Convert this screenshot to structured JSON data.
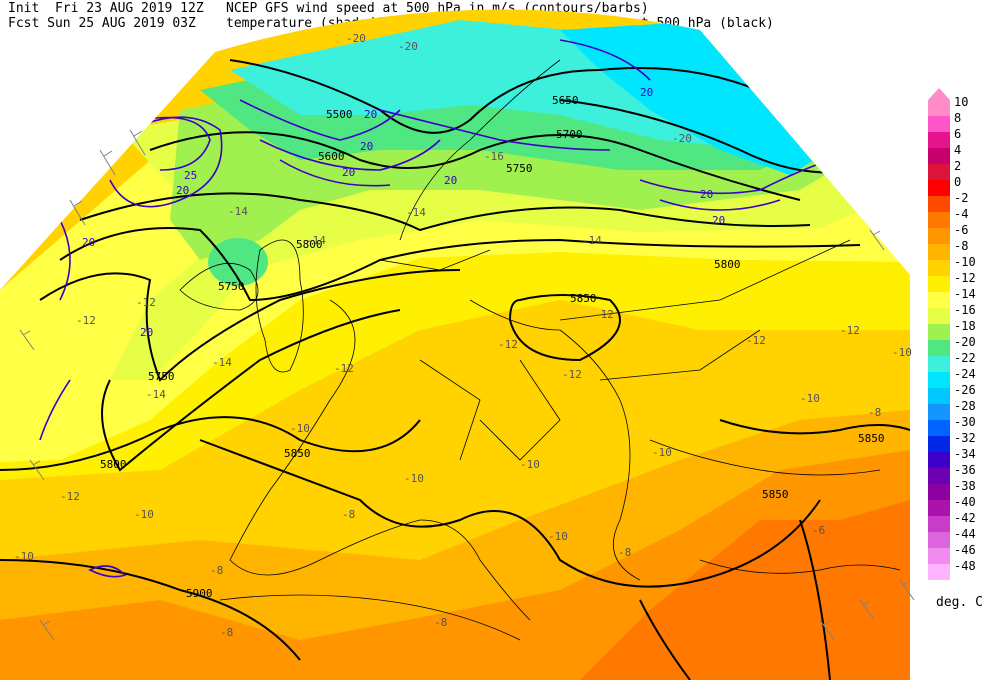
{
  "header": {
    "line1_left": "Init  Fri 23 AUG 2019 12Z",
    "line1_right": "NCEP GFS wind speed at 500 hPa in m/s (contours/barbs)",
    "line2_left": "Fcst Sun 25 AUG 2019 03Z",
    "line2_right": "temperature (shaded/dotted) and geopotential height at 500 hPa (black)"
  },
  "legend": {
    "unit": "deg. C",
    "levels": [
      "10",
      "8",
      "6",
      "4",
      "2",
      "0",
      "-2",
      "-4",
      "-6",
      "-8",
      "-10",
      "-12",
      "-14",
      "-16",
      "-18",
      "-20",
      "-22",
      "-24",
      "-26",
      "-28",
      "-30",
      "-32",
      "-34",
      "-36",
      "-38",
      "-40",
      "-42",
      "-44",
      "-46",
      "-48"
    ],
    "colors": [
      "#ff8cc8",
      "#ff55c8",
      "#e6148c",
      "#c8006e",
      "#dc143c",
      "#ff0000",
      "#ff4800",
      "#ff7800",
      "#ff9600",
      "#ffb400",
      "#ffd200",
      "#ffef00",
      "#ffff46",
      "#e6ff46",
      "#a0f050",
      "#50e682",
      "#3cf0dc",
      "#00e6ff",
      "#00c8ff",
      "#1496ff",
      "#0064ff",
      "#0028e6",
      "#3c00c8",
      "#6e00b4",
      "#8c00a0",
      "#aa14aa",
      "#c83cc8",
      "#dc64dc",
      "#f08cf0",
      "#ffb4ff"
    ]
  },
  "height_labels": [
    "5500",
    "5600",
    "5650",
    "5700",
    "5750",
    "5750",
    "5750",
    "5800",
    "5800",
    "5850",
    "5850",
    "5850",
    "5850",
    "5900",
    "5800"
  ],
  "temp_labels": [
    "-20",
    "-20",
    "-20",
    "-16",
    "-14",
    "-14",
    "-14",
    "-12",
    "-14",
    "-12",
    "-12",
    "-14",
    "-12",
    "-12",
    "-12",
    "-10",
    "-12",
    "-14",
    "-12",
    "-10",
    "-10",
    "-10",
    "-8",
    "-10",
    "-10",
    "-12",
    "-10",
    "-8",
    "-10",
    "-8",
    "-8",
    "-8",
    "-8",
    "-10",
    "-6"
  ],
  "wind_labels": [
    "20",
    "20",
    "20",
    "20",
    "20",
    "20",
    "25",
    "20",
    "20",
    "20",
    "20"
  ]
}
